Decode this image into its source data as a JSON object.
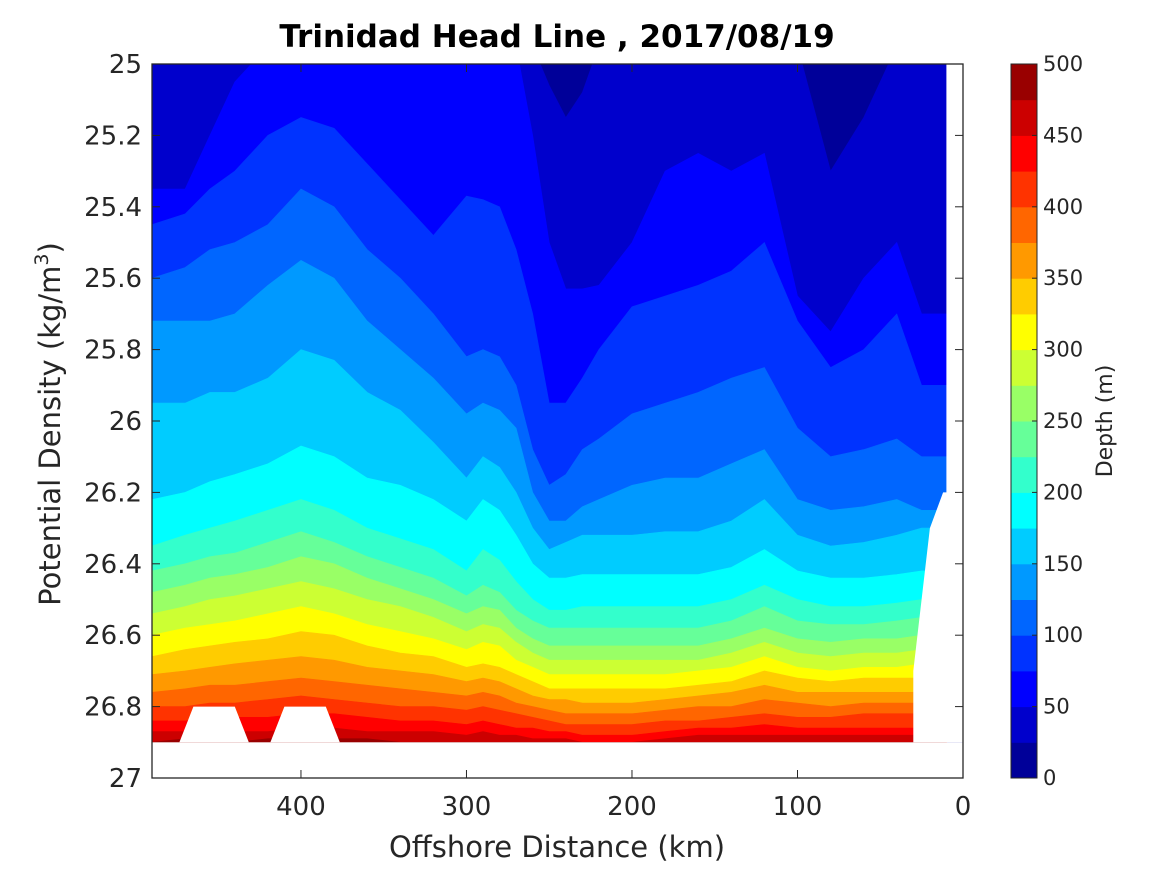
{
  "chart_data": {
    "type": "contourf",
    "title": "Trinidad Head Line , 2017/08/19",
    "xlabel": "Offshore Distance (km)",
    "ylabel_main": "Potential Density (kg/m",
    "ylabel_sup": "3",
    "ylabel_close": ")",
    "xlim": [
      490,
      0
    ],
    "x_reversed": true,
    "x_ticks": [
      "400",
      "300",
      "200",
      "100",
      "0"
    ],
    "x_tick_values": [
      400,
      300,
      200,
      100,
      0
    ],
    "ylim": [
      25,
      27
    ],
    "y_reversed": true,
    "y_ticks": [
      "25",
      "25.2",
      "25.4",
      "25.6",
      "25.8",
      "26",
      "26.2",
      "26.4",
      "26.6",
      "26.8",
      "27"
    ],
    "y_tick_values": [
      25,
      25.2,
      25.4,
      25.6,
      25.8,
      26,
      26.2,
      26.4,
      26.6,
      26.8,
      27
    ],
    "colorbar": {
      "label": "Depth (m)",
      "ticks": [
        "0",
        "50",
        "100",
        "150",
        "200",
        "250",
        "300",
        "350",
        "400",
        "450",
        "500"
      ],
      "tick_values": [
        0,
        50,
        100,
        150,
        200,
        250,
        300,
        350,
        400,
        450,
        500
      ],
      "levels": [
        0,
        25,
        50,
        75,
        100,
        125,
        150,
        175,
        200,
        225,
        250,
        275,
        300,
        325,
        350,
        375,
        400,
        425,
        450,
        475,
        500
      ],
      "colormap": "jet"
    },
    "x": [
      490,
      470,
      455,
      440,
      420,
      400,
      380,
      360,
      340,
      320,
      300,
      290,
      280,
      270,
      260,
      250,
      240,
      230,
      220,
      200,
      180,
      160,
      140,
      120,
      100,
      80,
      60,
      40,
      25
    ],
    "contour_levels_depth_m": [
      25,
      50,
      75,
      100,
      125,
      150,
      175,
      200,
      225,
      250,
      275,
      300,
      325,
      350,
      375,
      400,
      425,
      450,
      475
    ],
    "isopycnal_density_at_depth": [
      [
        24.95,
        24.95,
        24.95,
        24.95,
        24.95,
        24.95,
        24.95,
        24.95,
        24.95,
        24.95,
        24.95,
        24.95,
        24.95,
        24.95,
        24.95,
        25.06,
        25.15,
        25.08,
        24.95,
        24.95,
        24.95,
        24.95,
        24.95,
        24.95,
        24.95,
        25.3,
        25.15,
        24.95,
        24.95
      ],
      [
        25.35,
        25.35,
        25.2,
        25.05,
        24.95,
        24.95,
        24.95,
        24.95,
        24.95,
        24.95,
        24.95,
        24.95,
        24.95,
        24.95,
        25.2,
        25.5,
        25.63,
        25.63,
        25.62,
        25.5,
        25.3,
        25.25,
        25.3,
        25.25,
        25.65,
        25.75,
        25.6,
        25.5,
        25.7
      ],
      [
        25.45,
        25.42,
        25.35,
        25.3,
        25.2,
        25.15,
        25.18,
        25.28,
        25.38,
        25.48,
        25.37,
        25.38,
        25.4,
        25.52,
        25.7,
        25.95,
        25.95,
        25.88,
        25.8,
        25.68,
        25.65,
        25.62,
        25.58,
        25.5,
        25.72,
        25.85,
        25.8,
        25.7,
        25.9
      ],
      [
        25.6,
        25.57,
        25.52,
        25.5,
        25.45,
        25.35,
        25.4,
        25.52,
        25.6,
        25.7,
        25.82,
        25.8,
        25.82,
        25.9,
        26.08,
        26.18,
        26.15,
        26.08,
        26.05,
        25.98,
        25.95,
        25.92,
        25.88,
        25.85,
        26.02,
        26.1,
        26.08,
        26.05,
        26.1
      ],
      [
        25.72,
        25.72,
        25.72,
        25.7,
        25.62,
        25.55,
        25.6,
        25.72,
        25.8,
        25.88,
        25.98,
        25.95,
        25.97,
        26.02,
        26.2,
        26.28,
        26.28,
        26.24,
        26.22,
        26.18,
        26.16,
        26.16,
        26.12,
        26.08,
        26.22,
        26.25,
        26.24,
        26.22,
        26.25
      ],
      [
        25.95,
        25.95,
        25.92,
        25.92,
        25.88,
        25.8,
        25.83,
        25.92,
        25.97,
        26.06,
        26.16,
        26.1,
        26.13,
        26.2,
        26.3,
        26.36,
        26.34,
        26.32,
        26.32,
        26.32,
        26.31,
        26.31,
        26.28,
        26.22,
        26.32,
        26.35,
        26.34,
        26.32,
        26.3
      ],
      [
        26.22,
        26.2,
        26.17,
        26.15,
        26.12,
        26.07,
        26.1,
        26.16,
        26.18,
        26.22,
        26.28,
        26.22,
        26.25,
        26.32,
        26.4,
        26.44,
        26.44,
        26.43,
        26.43,
        26.43,
        26.43,
        26.43,
        26.41,
        26.36,
        26.42,
        26.44,
        26.44,
        26.43,
        26.42
      ],
      [
        26.35,
        26.32,
        26.3,
        26.28,
        26.25,
        26.22,
        26.25,
        26.3,
        26.33,
        26.36,
        26.42,
        26.36,
        26.39,
        26.45,
        26.5,
        26.53,
        26.53,
        26.52,
        26.52,
        26.52,
        26.52,
        26.52,
        26.5,
        26.46,
        26.5,
        26.52,
        26.52,
        26.51,
        26.5
      ],
      [
        26.42,
        26.4,
        26.38,
        26.37,
        26.34,
        26.31,
        26.34,
        26.38,
        26.41,
        26.44,
        26.49,
        26.46,
        26.48,
        26.53,
        26.56,
        26.58,
        26.58,
        26.58,
        26.58,
        26.58,
        26.58,
        26.58,
        26.56,
        26.52,
        26.56,
        26.57,
        26.57,
        26.56,
        26.55
      ],
      [
        26.48,
        26.46,
        26.44,
        26.43,
        26.41,
        26.38,
        26.4,
        26.44,
        26.47,
        26.5,
        26.54,
        26.52,
        26.53,
        26.58,
        26.61,
        26.63,
        26.63,
        26.63,
        26.63,
        26.63,
        26.63,
        26.63,
        26.61,
        26.58,
        26.61,
        26.62,
        26.61,
        26.61,
        26.6
      ],
      [
        26.54,
        26.52,
        26.5,
        26.49,
        26.47,
        26.45,
        26.47,
        26.5,
        26.52,
        26.55,
        26.59,
        26.57,
        26.58,
        26.62,
        26.65,
        26.67,
        26.67,
        26.67,
        26.67,
        26.67,
        26.67,
        26.67,
        26.65,
        26.62,
        26.65,
        26.66,
        26.65,
        26.65,
        26.64
      ],
      [
        26.6,
        26.58,
        26.57,
        26.56,
        26.54,
        26.52,
        26.54,
        26.57,
        26.59,
        26.61,
        26.64,
        26.62,
        26.63,
        26.67,
        26.69,
        26.71,
        26.71,
        26.71,
        26.71,
        26.71,
        26.71,
        26.7,
        26.69,
        26.66,
        26.69,
        26.7,
        26.69,
        26.69,
        26.68
      ],
      [
        26.66,
        26.64,
        26.63,
        26.62,
        26.61,
        26.59,
        26.6,
        26.63,
        26.65,
        26.66,
        26.69,
        26.68,
        26.69,
        26.71,
        26.73,
        26.75,
        26.75,
        26.75,
        26.75,
        26.75,
        26.75,
        26.74,
        26.73,
        26.7,
        26.72,
        26.73,
        26.72,
        26.72,
        26.72
      ],
      [
        26.71,
        26.7,
        26.69,
        26.68,
        26.67,
        26.66,
        26.67,
        26.69,
        26.7,
        26.71,
        26.73,
        26.72,
        26.73,
        26.75,
        26.77,
        26.78,
        26.78,
        26.79,
        26.79,
        26.79,
        26.78,
        26.77,
        26.76,
        26.74,
        26.76,
        26.76,
        26.76,
        26.76,
        26.76
      ],
      [
        26.76,
        26.75,
        26.74,
        26.74,
        26.73,
        26.72,
        26.73,
        26.74,
        26.75,
        26.76,
        26.77,
        26.76,
        26.77,
        26.79,
        26.8,
        26.81,
        26.82,
        26.82,
        26.82,
        26.82,
        26.81,
        26.8,
        26.8,
        26.78,
        26.79,
        26.8,
        26.79,
        26.79,
        26.79
      ],
      [
        26.8,
        26.8,
        26.79,
        26.79,
        26.78,
        26.77,
        26.78,
        26.79,
        26.8,
        26.8,
        26.81,
        26.8,
        26.81,
        26.82,
        26.83,
        26.84,
        26.85,
        26.85,
        26.85,
        26.85,
        26.84,
        26.84,
        26.83,
        26.82,
        26.83,
        26.83,
        26.82,
        26.82,
        26.82
      ],
      [
        26.84,
        26.84,
        26.83,
        26.83,
        26.83,
        26.82,
        26.82,
        26.83,
        26.84,
        26.84,
        26.85,
        26.84,
        26.85,
        26.86,
        26.86,
        26.87,
        26.87,
        26.88,
        26.88,
        26.88,
        26.87,
        26.86,
        26.86,
        26.85,
        26.86,
        26.86,
        26.86,
        26.86,
        26.86
      ],
      [
        26.87,
        26.87,
        26.87,
        26.87,
        26.87,
        26.86,
        26.86,
        26.87,
        26.87,
        26.87,
        26.88,
        26.87,
        26.88,
        26.88,
        26.89,
        26.89,
        26.89,
        26.9,
        26.9,
        26.9,
        26.89,
        26.88,
        26.88,
        26.88,
        26.88,
        26.88,
        26.88,
        26.88,
        26.88
      ],
      [
        26.9,
        26.89,
        26.9,
        26.9,
        26.89,
        26.89,
        26.89,
        26.89,
        26.9,
        26.9,
        26.9,
        26.9,
        26.9,
        26.9,
        26.9,
        26.9,
        26.9,
        26.9,
        26.9,
        26.9,
        26.9,
        26.9,
        26.9,
        26.9,
        26.9,
        26.9,
        26.9,
        26.9,
        26.9
      ]
    ],
    "bottom_density": 26.9,
    "no_data_regions": [
      {
        "label": "gap",
        "x": [
          465,
          440
        ],
        "density_top": 26.8
      },
      {
        "label": "gap",
        "x": [
          410,
          385
        ],
        "density_top": 26.8
      }
    ],
    "nearshore_boundary": {
      "x": [
        10,
        12,
        20,
        30
      ],
      "density": [
        26.2,
        26.2,
        26.3,
        26.7
      ]
    }
  }
}
